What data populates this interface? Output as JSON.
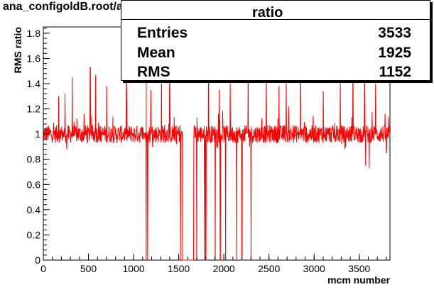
{
  "title": "ana_configoldB.root/ana_configoldC.root",
  "stats": {
    "box_title": "ratio",
    "rows": [
      {
        "label": "Entries",
        "value": "3533"
      },
      {
        "label": "Mean",
        "value": "1925"
      },
      {
        "label": "RMS",
        "value": "1152"
      }
    ]
  },
  "chart_data": {
    "type": "line",
    "title": "ana_configoldB.root/ana_configoldC.root",
    "xlabel": "mcm number",
    "ylabel": "RMS ratio",
    "xlim": [
      0,
      3840
    ],
    "ylim": [
      0,
      1.85
    ],
    "x_ticks": [
      0,
      500,
      1000,
      1500,
      2000,
      2500,
      3000,
      3500
    ],
    "y_ticks": [
      0,
      0.2,
      0.4,
      0.6,
      0.8,
      1,
      1.2,
      1.4,
      1.6,
      1.8
    ],
    "y_tick_labels": [
      "0",
      "0.2",
      "0.4",
      "0.6",
      "0.8",
      "1",
      "1.2",
      "1.4",
      "1.6",
      "1.8"
    ],
    "color": "#ff0000",
    "baseline": 1.0,
    "zero_regions": [
      [
        1540,
        1665
      ]
    ],
    "dips_to_zero": [
      1140,
      1155,
      1520,
      1700,
      1785,
      1800,
      1905,
      1960,
      2020,
      2140,
      2200,
      2300
    ],
    "spikes": [
      {
        "x": 170,
        "y": 1.3
      },
      {
        "x": 240,
        "y": 1.32
      },
      {
        "x": 320,
        "y": 1.45
      },
      {
        "x": 520,
        "y": 1.53
      },
      {
        "x": 580,
        "y": 1.47
      },
      {
        "x": 700,
        "y": 1.38
      },
      {
        "x": 920,
        "y": 1.42
      },
      {
        "x": 1140,
        "y": 1.8
      },
      {
        "x": 1190,
        "y": 1.35
      },
      {
        "x": 1310,
        "y": 1.4
      },
      {
        "x": 1400,
        "y": 1.45
      },
      {
        "x": 1830,
        "y": 1.8
      },
      {
        "x": 1950,
        "y": 1.35
      },
      {
        "x": 2070,
        "y": 1.4
      },
      {
        "x": 2270,
        "y": 1.45
      },
      {
        "x": 2470,
        "y": 1.45
      },
      {
        "x": 2610,
        "y": 1.38
      },
      {
        "x": 2690,
        "y": 1.4
      },
      {
        "x": 2850,
        "y": 1.8
      },
      {
        "x": 3100,
        "y": 1.34
      },
      {
        "x": 3290,
        "y": 1.42
      },
      {
        "x": 3430,
        "y": 1.68
      },
      {
        "x": 3560,
        "y": 1.42
      },
      {
        "x": 3680,
        "y": 1.4
      }
    ],
    "downspikes": [
      {
        "x": 260,
        "y": 0.88
      },
      {
        "x": 3340,
        "y": 0.88
      },
      {
        "x": 3570,
        "y": 0.75
      },
      {
        "x": 3610,
        "y": 0.73
      },
      {
        "x": 3800,
        "y": 0.85
      }
    ]
  }
}
